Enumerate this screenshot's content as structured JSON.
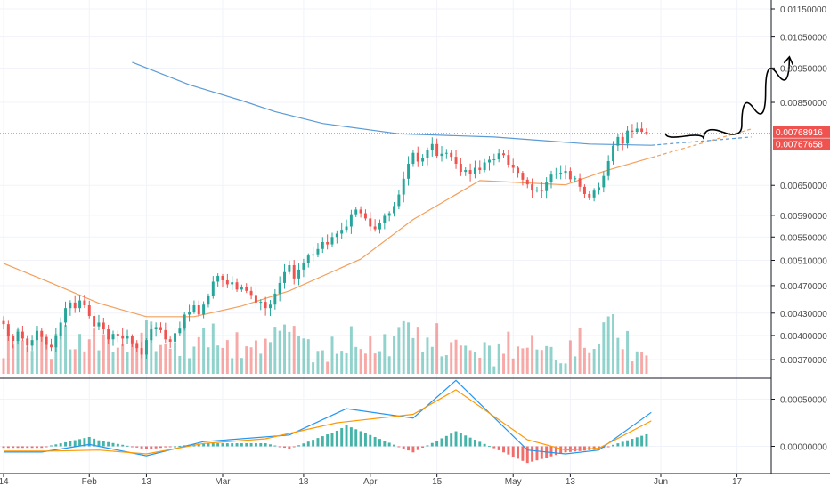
{
  "chart_data": {
    "type": "candlestick",
    "title": "",
    "price_axis": {
      "scale": "log",
      "tick_labels": [
        "0.01150000",
        "0.01050000",
        "0.00950000",
        "0.00850000",
        "0.00650000",
        "0.00590000",
        "0.00550000",
        "0.00510000",
        "0.00470000",
        "0.00430000",
        "0.00400000",
        "0.00370000"
      ],
      "tick_values": [
        0.0115,
        0.0105,
        0.0095,
        0.0085,
        0.0065,
        0.0059,
        0.0055,
        0.0051,
        0.0047,
        0.0043,
        0.004,
        0.0037
      ]
    },
    "price_labels": [
      {
        "text": "0.00768916",
        "value": 0.00768916,
        "color": "#ef5350"
      },
      {
        "text": "0.00767658",
        "value": 0.00767658,
        "color": "#ef5350"
      }
    ],
    "macd_axis": {
      "tick_labels": [
        "0.00050000",
        "0.00000000"
      ],
      "tick_values": [
        0.0005,
        0.0
      ]
    },
    "time_axis": {
      "labels": [
        "14",
        "Feb",
        "13",
        "Mar",
        "18",
        "Apr",
        "15",
        "May",
        "13",
        "Jun",
        "17"
      ],
      "dates": [
        "2019-01-14",
        "2019-02-01",
        "2019-02-13",
        "2019-03-01",
        "2019-03-18",
        "2019-04-01",
        "2019-04-15",
        "2019-05-01",
        "2019-05-13",
        "2019-06-01",
        "2019-06-17"
      ]
    },
    "candles": {
      "start_date": "2019-01-14",
      "close": [
        0.00415,
        0.00399,
        0.00393,
        0.00405,
        0.00396,
        0.00387,
        0.00394,
        0.00406,
        0.00398,
        0.00388,
        0.00385,
        0.004,
        0.00417,
        0.00437,
        0.00445,
        0.00437,
        0.00448,
        0.00441,
        0.00426,
        0.00412,
        0.00417,
        0.00408,
        0.00395,
        0.00402,
        0.004,
        0.00396,
        0.00399,
        0.0039,
        0.00384,
        0.00376,
        0.00394,
        0.00408,
        0.00411,
        0.00407,
        0.00395,
        0.00392,
        0.00403,
        0.00409,
        0.00428,
        0.00432,
        0.00441,
        0.00428,
        0.00442,
        0.00454,
        0.00476,
        0.00485,
        0.00478,
        0.00472,
        0.00475,
        0.00464,
        0.00468,
        0.00462,
        0.00456,
        0.00445,
        0.00446,
        0.00437,
        0.00442,
        0.00458,
        0.00474,
        0.00491,
        0.00502,
        0.00481,
        0.00495,
        0.00505,
        0.00518,
        0.0052,
        0.00529,
        0.00541,
        0.00537,
        0.0055,
        0.00556,
        0.00563,
        0.00569,
        0.00592,
        0.00601,
        0.00594,
        0.00584,
        0.00569,
        0.00564,
        0.00576,
        0.00589,
        0.00594,
        0.00608,
        0.00631,
        0.00664,
        0.00697,
        0.00722,
        0.00702,
        0.00711,
        0.00728,
        0.00743,
        0.00715,
        0.0072,
        0.00722,
        0.00713,
        0.00697,
        0.00679,
        0.00683,
        0.00675,
        0.00688,
        0.00683,
        0.007,
        0.00706,
        0.00707,
        0.00721,
        0.00717,
        0.00695,
        0.00688,
        0.00677,
        0.00662,
        0.00652,
        0.00639,
        0.00641,
        0.00638,
        0.00656,
        0.00673,
        0.00675,
        0.00677,
        0.00681,
        0.00663,
        0.00665,
        0.00647,
        0.00632,
        0.00625,
        0.00639,
        0.00646,
        0.0067,
        0.00703,
        0.00739,
        0.0076,
        0.00744,
        0.00776,
        0.00773,
        0.00781,
        0.00773,
        0.00769
      ]
    },
    "moving_averages": [
      {
        "color": "#5b9bd5",
        "x": [
          27,
          39,
          50,
          57,
          67,
          83,
          103,
          123,
          136
        ],
        "y": [
          0.00968,
          0.009,
          0.00855,
          0.00825,
          0.00794,
          0.00768,
          0.0076,
          0.00743,
          0.0074
        ]
      },
      {
        "color": "#f4a05c",
        "x": [
          0,
          10,
          20,
          30,
          40,
          50,
          60,
          75,
          86,
          100,
          108,
          118,
          126,
          136
        ],
        "y": [
          0.00505,
          0.00474,
          0.00444,
          0.00425,
          0.00425,
          0.0044,
          0.00462,
          0.00512,
          0.00582,
          0.0066,
          0.00656,
          0.00651,
          0.0068,
          0.00711
        ]
      }
    ],
    "hlines": [
      {
        "value": 0.00769,
        "color": "#ef5350",
        "style": "dotted"
      }
    ],
    "projections": [
      {
        "color": "#5b9bd5",
        "style": "dashed",
        "x": [
          136,
          157
        ],
        "y": [
          0.0074,
          0.0076
        ]
      },
      {
        "color": "#f4a05c",
        "style": "dashed",
        "x": [
          136,
          157
        ],
        "y": [
          0.00711,
          0.0078
        ]
      }
    ],
    "arrow": {
      "color": "#000000",
      "x": [
        139,
        147,
        155,
        160,
        165
      ],
      "y": [
        0.00769,
        0.00755,
        0.0079,
        0.0088,
        0.00985
      ]
    },
    "macd": {
      "macd_x": [
        0,
        8,
        18,
        30,
        42,
        60,
        72,
        86,
        95,
        110,
        118,
        125,
        136
      ],
      "macd_y": [
        -6e-05,
        -6e-05,
        2e-05,
        -0.0001,
        5e-05,
        0.00012,
        0.0004,
        0.0003,
        0.0007,
        -4e-05,
        -8e-05,
        -4e-05,
        0.00036
      ],
      "signal_x": [
        0,
        10,
        20,
        30,
        42,
        55,
        70,
        86,
        95,
        110,
        118,
        125,
        136
      ],
      "signal_y": [
        -5e-05,
        -5e-05,
        -4e-05,
        -8e-05,
        3e-05,
        8e-05,
        0.00025,
        0.00034,
        0.0006,
        7e-05,
        -4e-05,
        -2e-05,
        0.00027
      ]
    }
  }
}
